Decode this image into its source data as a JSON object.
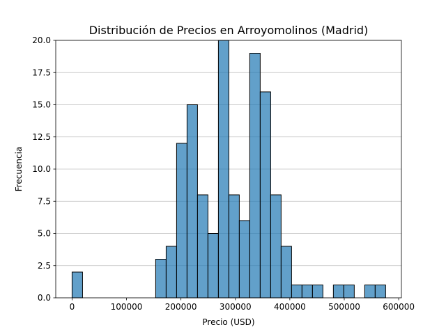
{
  "chart_data": {
    "type": "bar",
    "title": "Distribución de Precios en Arroyomolinos (Madrid)",
    "xlabel": "Precio (USD)",
    "ylabel": "Frecuencia",
    "xlim": [
      -30000,
      605000
    ],
    "ylim": [
      0,
      20
    ],
    "bin_edges": [
      0,
      19200,
      38400,
      57600,
      76800,
      96000,
      115200,
      134400,
      153600,
      172800,
      192000,
      211200,
      230400,
      249600,
      268800,
      288000,
      307200,
      326400,
      345600,
      364800,
      384000,
      403200,
      422400,
      441600,
      460800,
      480000,
      499200,
      518400,
      537600,
      556800,
      576000
    ],
    "values": [
      2,
      0,
      0,
      0,
      0,
      0,
      0,
      0,
      3,
      4,
      12,
      15,
      8,
      5,
      20,
      8,
      6,
      19,
      16,
      8,
      4,
      1,
      1,
      1,
      0,
      1,
      1,
      0,
      1,
      1
    ],
    "x_ticks": [
      0,
      100000,
      200000,
      300000,
      400000,
      500000,
      600000
    ],
    "x_tick_labels": [
      "0",
      "100000",
      "200000",
      "300000",
      "400000",
      "500000",
      "600000"
    ],
    "y_ticks": [
      0,
      2.5,
      5,
      7.5,
      10,
      12.5,
      15,
      17.5,
      20
    ],
    "y_tick_labels": [
      "0.0",
      "2.5",
      "5.0",
      "7.5",
      "10.0",
      "12.5",
      "15.0",
      "17.5",
      "20.0"
    ],
    "grid": "y-axis",
    "bar_color": "#1f77b4",
    "bar_opacity": 0.7,
    "edge_color": "#000000"
  }
}
